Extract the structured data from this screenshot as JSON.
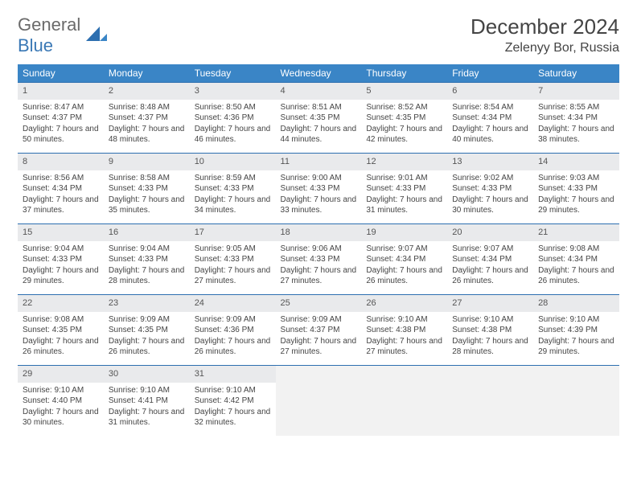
{
  "brand": {
    "part1": "General",
    "part2": "Blue"
  },
  "title": "December 2024",
  "location": "Zelenyy Bor, Russia",
  "colors": {
    "header_bg": "#3a85c6",
    "daynum_bg": "#e9eaec",
    "row_border": "#2d6fb0",
    "empty_bg": "#f2f2f2",
    "text": "#444444",
    "brand_gray": "#6a6a6a",
    "brand_blue": "#3a78b5"
  },
  "typography": {
    "title_fontsize": 26,
    "location_fontsize": 16,
    "header_fontsize": 12,
    "cell_fontsize": 10,
    "daynum_fontsize": 11
  },
  "day_headers": [
    "Sunday",
    "Monday",
    "Tuesday",
    "Wednesday",
    "Thursday",
    "Friday",
    "Saturday"
  ],
  "weeks": [
    [
      {
        "n": "1",
        "sr": "8:47 AM",
        "ss": "4:37 PM",
        "dl": "7 hours and 50 minutes."
      },
      {
        "n": "2",
        "sr": "8:48 AM",
        "ss": "4:37 PM",
        "dl": "7 hours and 48 minutes."
      },
      {
        "n": "3",
        "sr": "8:50 AM",
        "ss": "4:36 PM",
        "dl": "7 hours and 46 minutes."
      },
      {
        "n": "4",
        "sr": "8:51 AM",
        "ss": "4:35 PM",
        "dl": "7 hours and 44 minutes."
      },
      {
        "n": "5",
        "sr": "8:52 AM",
        "ss": "4:35 PM",
        "dl": "7 hours and 42 minutes."
      },
      {
        "n": "6",
        "sr": "8:54 AM",
        "ss": "4:34 PM",
        "dl": "7 hours and 40 minutes."
      },
      {
        "n": "7",
        "sr": "8:55 AM",
        "ss": "4:34 PM",
        "dl": "7 hours and 38 minutes."
      }
    ],
    [
      {
        "n": "8",
        "sr": "8:56 AM",
        "ss": "4:34 PM",
        "dl": "7 hours and 37 minutes."
      },
      {
        "n": "9",
        "sr": "8:58 AM",
        "ss": "4:33 PM",
        "dl": "7 hours and 35 minutes."
      },
      {
        "n": "10",
        "sr": "8:59 AM",
        "ss": "4:33 PM",
        "dl": "7 hours and 34 minutes."
      },
      {
        "n": "11",
        "sr": "9:00 AM",
        "ss": "4:33 PM",
        "dl": "7 hours and 33 minutes."
      },
      {
        "n": "12",
        "sr": "9:01 AM",
        "ss": "4:33 PM",
        "dl": "7 hours and 31 minutes."
      },
      {
        "n": "13",
        "sr": "9:02 AM",
        "ss": "4:33 PM",
        "dl": "7 hours and 30 minutes."
      },
      {
        "n": "14",
        "sr": "9:03 AM",
        "ss": "4:33 PM",
        "dl": "7 hours and 29 minutes."
      }
    ],
    [
      {
        "n": "15",
        "sr": "9:04 AM",
        "ss": "4:33 PM",
        "dl": "7 hours and 29 minutes."
      },
      {
        "n": "16",
        "sr": "9:04 AM",
        "ss": "4:33 PM",
        "dl": "7 hours and 28 minutes."
      },
      {
        "n": "17",
        "sr": "9:05 AM",
        "ss": "4:33 PM",
        "dl": "7 hours and 27 minutes."
      },
      {
        "n": "18",
        "sr": "9:06 AM",
        "ss": "4:33 PM",
        "dl": "7 hours and 27 minutes."
      },
      {
        "n": "19",
        "sr": "9:07 AM",
        "ss": "4:34 PM",
        "dl": "7 hours and 26 minutes."
      },
      {
        "n": "20",
        "sr": "9:07 AM",
        "ss": "4:34 PM",
        "dl": "7 hours and 26 minutes."
      },
      {
        "n": "21",
        "sr": "9:08 AM",
        "ss": "4:34 PM",
        "dl": "7 hours and 26 minutes."
      }
    ],
    [
      {
        "n": "22",
        "sr": "9:08 AM",
        "ss": "4:35 PM",
        "dl": "7 hours and 26 minutes."
      },
      {
        "n": "23",
        "sr": "9:09 AM",
        "ss": "4:35 PM",
        "dl": "7 hours and 26 minutes."
      },
      {
        "n": "24",
        "sr": "9:09 AM",
        "ss": "4:36 PM",
        "dl": "7 hours and 26 minutes."
      },
      {
        "n": "25",
        "sr": "9:09 AM",
        "ss": "4:37 PM",
        "dl": "7 hours and 27 minutes."
      },
      {
        "n": "26",
        "sr": "9:10 AM",
        "ss": "4:38 PM",
        "dl": "7 hours and 27 minutes."
      },
      {
        "n": "27",
        "sr": "9:10 AM",
        "ss": "4:38 PM",
        "dl": "7 hours and 28 minutes."
      },
      {
        "n": "28",
        "sr": "9:10 AM",
        "ss": "4:39 PM",
        "dl": "7 hours and 29 minutes."
      }
    ],
    [
      {
        "n": "29",
        "sr": "9:10 AM",
        "ss": "4:40 PM",
        "dl": "7 hours and 30 minutes."
      },
      {
        "n": "30",
        "sr": "9:10 AM",
        "ss": "4:41 PM",
        "dl": "7 hours and 31 minutes."
      },
      {
        "n": "31",
        "sr": "9:10 AM",
        "ss": "4:42 PM",
        "dl": "7 hours and 32 minutes."
      },
      null,
      null,
      null,
      null
    ]
  ],
  "labels": {
    "sunrise": "Sunrise:",
    "sunset": "Sunset:",
    "daylight": "Daylight:"
  }
}
